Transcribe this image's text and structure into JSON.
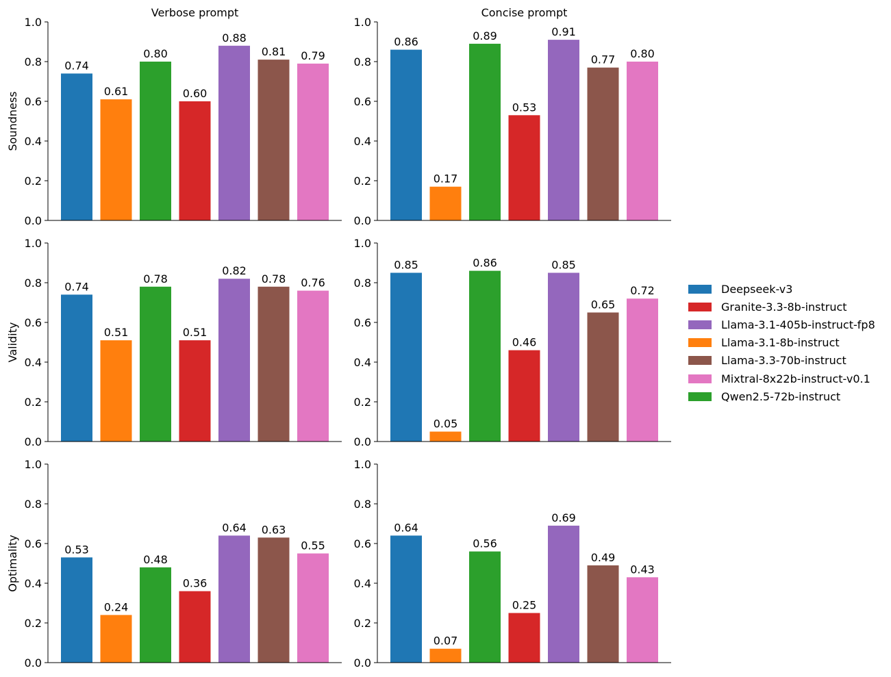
{
  "chart_data": {
    "type": "bar",
    "layout": "grid",
    "rows": [
      "Soundness",
      "Validity",
      "Optimality"
    ],
    "columns": [
      "Verbose prompt",
      "Concise prompt"
    ],
    "categories": [
      "Deepseek-v3",
      "Llama-3.1-8b-instruct",
      "Qwen2.5-72b-instruct",
      "Granite-3.3-8b-instruct",
      "Llama-3.1-405b-instruct-fp8",
      "Llama-3.3-70b-instruct",
      "Mixtral-8x22b-instruct-v0.1"
    ],
    "ylim": [
      0,
      1
    ],
    "yticks": [
      "0.0",
      "0.2",
      "0.4",
      "0.6",
      "0.8",
      "1.0"
    ],
    "panels": [
      {
        "row": "Soundness",
        "column": "Verbose prompt",
        "title": "Verbose prompt",
        "ylabel": "Soundness",
        "values": [
          0.74,
          0.61,
          0.8,
          0.6,
          0.88,
          0.81,
          0.79
        ],
        "labels": [
          "0.74",
          "0.61",
          "0.80",
          "0.60",
          "0.88",
          "0.81",
          "0.79"
        ]
      },
      {
        "row": "Soundness",
        "column": "Concise prompt",
        "title": "Concise prompt",
        "ylabel": "",
        "values": [
          0.86,
          0.17,
          0.89,
          0.53,
          0.91,
          0.77,
          0.8
        ],
        "labels": [
          "0.86",
          "0.17",
          "0.89",
          "0.53",
          "0.91",
          "0.77",
          "0.80"
        ]
      },
      {
        "row": "Validity",
        "column": "Verbose prompt",
        "title": "",
        "ylabel": "Validity",
        "values": [
          0.74,
          0.51,
          0.78,
          0.51,
          0.82,
          0.78,
          0.76
        ],
        "labels": [
          "0.74",
          "0.51",
          "0.78",
          "0.51",
          "0.82",
          "0.78",
          "0.76"
        ]
      },
      {
        "row": "Validity",
        "column": "Concise prompt",
        "title": "",
        "ylabel": "",
        "values": [
          0.85,
          0.05,
          0.86,
          0.46,
          0.85,
          0.65,
          0.72
        ],
        "labels": [
          "0.85",
          "0.05",
          "0.86",
          "0.46",
          "0.85",
          "0.65",
          "0.72"
        ]
      },
      {
        "row": "Optimality",
        "column": "Verbose prompt",
        "title": "",
        "ylabel": "Optimality",
        "values": [
          0.53,
          0.24,
          0.48,
          0.36,
          0.64,
          0.63,
          0.55
        ],
        "labels": [
          "0.53",
          "0.24",
          "0.48",
          "0.36",
          "0.64",
          "0.63",
          "0.55"
        ]
      },
      {
        "row": "Optimality",
        "column": "Concise prompt",
        "title": "",
        "ylabel": "",
        "values": [
          0.64,
          0.07,
          0.56,
          0.25,
          0.69,
          0.49,
          0.43
        ],
        "labels": [
          "0.64",
          "0.07",
          "0.56",
          "0.25",
          "0.69",
          "0.49",
          "0.43"
        ]
      }
    ],
    "colors": {
      "Deepseek-v3": "#1f77b4",
      "Llama-3.1-8b-instruct": "#ff7f0e",
      "Qwen2.5-72b-instruct": "#2ca02c",
      "Granite-3.3-8b-instruct": "#d62728",
      "Llama-3.1-405b-instruct-fp8": "#9467bd",
      "Llama-3.3-70b-instruct": "#8c564b",
      "Mixtral-8x22b-instruct-v0.1": "#e377c2"
    },
    "legend": {
      "position": "right",
      "entries": [
        {
          "label": "Deepseek-v3",
          "color": "#1f77b4"
        },
        {
          "label": "Granite-3.3-8b-instruct",
          "color": "#d62728"
        },
        {
          "label": "Llama-3.1-405b-instruct-fp8",
          "color": "#9467bd"
        },
        {
          "label": "Llama-3.1-8b-instruct",
          "color": "#ff7f0e"
        },
        {
          "label": "Llama-3.3-70b-instruct",
          "color": "#8c564b"
        },
        {
          "label": "Mixtral-8x22b-instruct-v0.1",
          "color": "#e377c2"
        },
        {
          "label": "Qwen2.5-72b-instruct",
          "color": "#2ca02c"
        }
      ]
    }
  }
}
